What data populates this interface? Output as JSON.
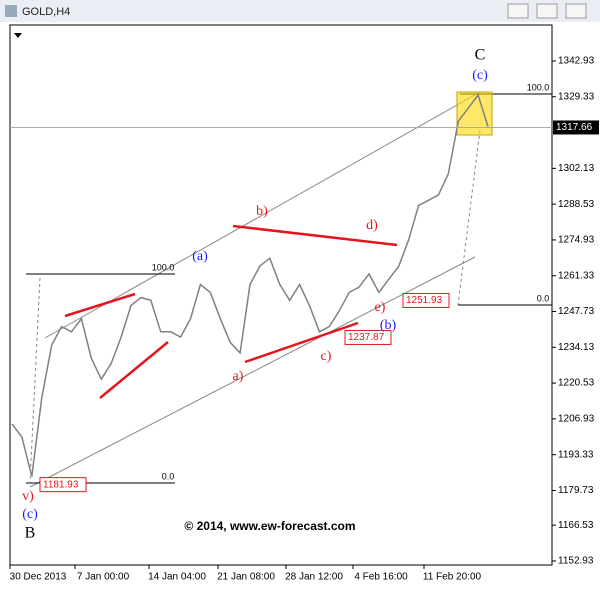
{
  "window_title": "GOLD,H4",
  "chart_data": {
    "type": "line",
    "color": "#808080",
    "values": [
      1205,
      1200,
      1185,
      1215,
      1235,
      1242,
      1240,
      1245,
      1230,
      1222,
      1228,
      1238,
      1250,
      1253,
      1252,
      1240,
      1240,
      1238,
      1245,
      1258,
      1255,
      1245,
      1236,
      1232,
      1258,
      1265,
      1268,
      1258,
      1252,
      1258,
      1250,
      1240,
      1242,
      1248,
      1255,
      1257,
      1262,
      1255,
      1260,
      1265,
      1275,
      1288,
      1290,
      1292,
      1300,
      1320,
      1325,
      1330,
      1318
    ],
    "x_labels": [
      "30 Dec 2013",
      "7 Jan 00:00",
      "14 Jan 04:00",
      "21 Jan 08:00",
      "28 Jan 12:00",
      "4 Feb 16:00",
      "11 Feb 20:00"
    ],
    "ylim": [
      1151.4,
      1356.6
    ],
    "yticks": [
      1342.93,
      1329.33,
      1302.13,
      1288.53,
      1274.93,
      1261.33,
      1247.73,
      1234.13,
      1220.53,
      1206.93,
      1193.33,
      1179.73,
      1166.53,
      1152.93
    ],
    "current_price": 1317.66,
    "price_labels": [
      1251.93,
      1237.87,
      1181.93
    ],
    "annotations": [
      "C",
      "(c)",
      "b)",
      "d)",
      "(a)",
      "a)",
      "c)",
      "e)",
      "(b)",
      "v)",
      "(c)",
      "B",
      "100.0",
      "100.0",
      "0.0",
      "0.0",
      "© 2014, www.ew-forecast.com"
    ]
  }
}
